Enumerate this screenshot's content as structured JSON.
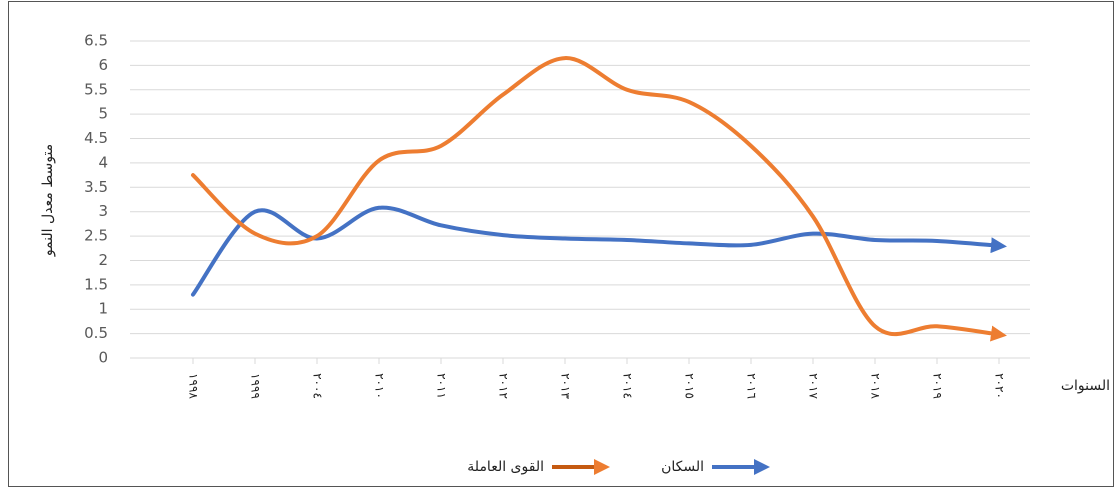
{
  "chart_data": {
    "type": "line",
    "y_label": "متوسط معدل النمو",
    "x_label": "السنوات",
    "categories": [
      "١٩٩٨",
      "١٩٩٩",
      "٢٠٠٤",
      "٢٠١٠",
      "٢٠١١",
      "٢٠١٢",
      "٢٠١٣",
      "٢٠١٤",
      "٢٠١٥",
      "٢٠١٦",
      "٢٠١٧",
      "٢٠١٨",
      "٢٠١٩",
      "٢٠٢٠"
    ],
    "series": [
      {
        "name": "السكان",
        "color": "#4472c4",
        "values": [
          1.3,
          3.0,
          2.45,
          3.08,
          2.72,
          2.52,
          2.45,
          2.42,
          2.35,
          2.32,
          2.55,
          2.42,
          2.4,
          2.3
        ]
      },
      {
        "name": "القوى العاملة",
        "color": "#ed7d31",
        "values": [
          3.75,
          2.55,
          2.5,
          4.05,
          4.35,
          5.4,
          6.15,
          5.5,
          5.25,
          4.35,
          2.9,
          0.65,
          0.65,
          0.48
        ]
      }
    ],
    "ylim": [
      0,
      6.5
    ],
    "yticks": [
      0,
      0.5,
      1,
      1.5,
      2,
      2.5,
      3,
      3.5,
      4,
      4.5,
      5,
      5.5,
      6,
      6.5
    ],
    "grid": true
  }
}
